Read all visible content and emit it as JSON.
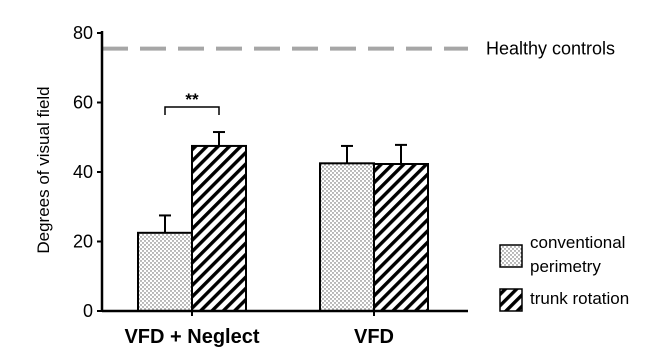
{
  "chart_data": {
    "type": "bar",
    "ylabel": "Degrees of visual field",
    "xlabel": "",
    "ylim": [
      0,
      80
    ],
    "yticks": [
      0,
      20,
      40,
      60,
      80
    ],
    "categories": [
      "VFD + Neglect",
      "VFD"
    ],
    "series": [
      {
        "name": "conventional perimetry",
        "pattern": "dots",
        "values": [
          22.5,
          42.5
        ],
        "errors": [
          5,
          5
        ]
      },
      {
        "name": "trunk rotation",
        "pattern": "diagonal-hatch",
        "values": [
          47.5,
          42.3
        ],
        "errors": [
          4,
          5.5
        ]
      }
    ],
    "reference_line": {
      "label": "Healthy controls",
      "value": 75.5,
      "style": "dashed",
      "color": "#a6a6a6"
    },
    "significance": [
      {
        "category_index": 0,
        "label": "**"
      }
    ],
    "legend": {
      "position": "bottom-right"
    },
    "grid": false
  }
}
